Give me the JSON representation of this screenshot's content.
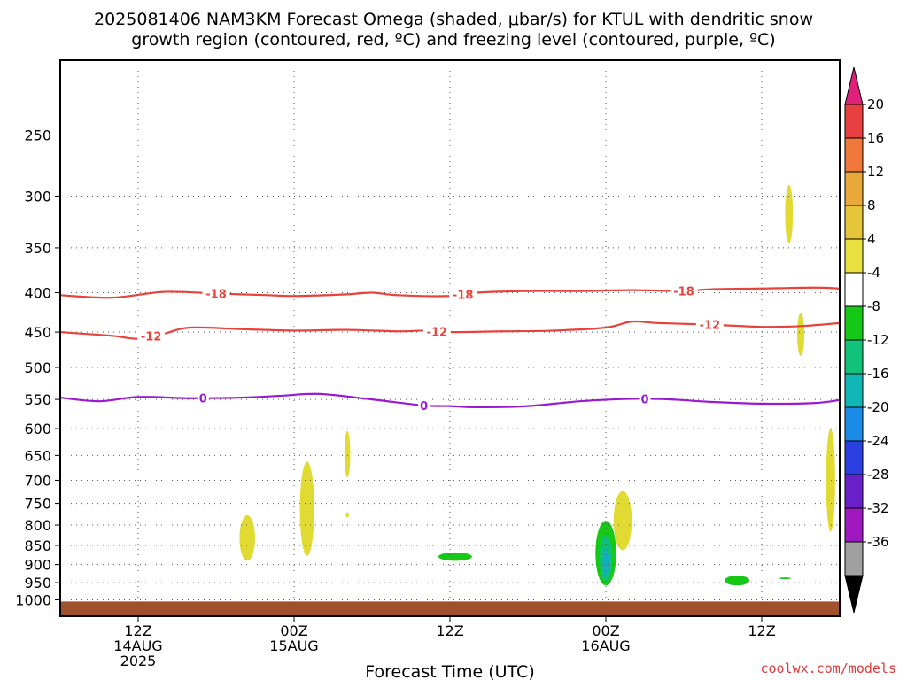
{
  "chart_data": {
    "type": "contour",
    "title_line1": "2025081406 NAM3KM Forecast Omega (shaded, μbar/s) for KTUL with dendritic snow",
    "title_line2": "growth region (contoured, red, ºC) and freezing level (contoured, purple, ºC)",
    "xlabel": "Forecast Time (UTC)",
    "credit": "coolwx.com/models",
    "x_range_hours": [
      0,
      60
    ],
    "y_axis": {
      "scale": "log-pressure",
      "range_hpa": [
        1050,
        200
      ],
      "ticks": [
        250,
        300,
        350,
        400,
        450,
        500,
        550,
        600,
        650,
        700,
        750,
        800,
        850,
        900,
        950,
        1000
      ]
    },
    "x_ticks": [
      {
        "hour": 6,
        "lines": [
          "12Z",
          "14AUG",
          "2025"
        ]
      },
      {
        "hour": 18,
        "lines": [
          "00Z",
          "15AUG"
        ]
      },
      {
        "hour": 30,
        "lines": [
          "12Z"
        ]
      },
      {
        "hour": 42,
        "lines": [
          "00Z",
          "16AUG"
        ]
      },
      {
        "hour": 54,
        "lines": [
          "12Z"
        ]
      }
    ],
    "grid": true,
    "surface_fill_hpa": 1005,
    "temperature_contours": [
      {
        "level": "-18",
        "color": "#e8423c",
        "label_hours": [
          12,
          31,
          48
        ],
        "points": [
          [
            0,
            403
          ],
          [
            4,
            406
          ],
          [
            8,
            399
          ],
          [
            12,
            401
          ],
          [
            16,
            403
          ],
          [
            18,
            404
          ],
          [
            22,
            402
          ],
          [
            24,
            400
          ],
          [
            26,
            403
          ],
          [
            30,
            404
          ],
          [
            32,
            400
          ],
          [
            36,
            398
          ],
          [
            40,
            398
          ],
          [
            44,
            397
          ],
          [
            48,
            398
          ],
          [
            50,
            396
          ],
          [
            54,
            395
          ],
          [
            58,
            394
          ],
          [
            60,
            395
          ]
        ]
      },
      {
        "level": "-12",
        "color": "#e8423c",
        "label_hours": [
          7,
          29,
          50
        ],
        "points": [
          [
            0,
            450
          ],
          [
            4,
            455
          ],
          [
            6,
            459
          ],
          [
            8,
            452
          ],
          [
            10,
            444
          ],
          [
            14,
            446
          ],
          [
            18,
            448
          ],
          [
            22,
            447
          ],
          [
            26,
            449
          ],
          [
            28,
            448
          ],
          [
            30,
            450
          ],
          [
            34,
            449
          ],
          [
            38,
            448
          ],
          [
            42,
            444
          ],
          [
            44,
            436
          ],
          [
            46,
            438
          ],
          [
            50,
            440
          ],
          [
            54,
            443
          ],
          [
            57,
            442
          ],
          [
            60,
            438
          ]
        ]
      },
      {
        "level": "0",
        "color": "#9a1ad0",
        "label_hours": [
          11,
          28,
          45
        ],
        "points": [
          [
            0,
            547
          ],
          [
            3,
            553
          ],
          [
            6,
            546
          ],
          [
            10,
            548
          ],
          [
            14,
            547
          ],
          [
            17,
            544
          ],
          [
            20,
            541
          ],
          [
            24,
            550
          ],
          [
            28,
            560
          ],
          [
            30,
            561
          ],
          [
            32,
            563
          ],
          [
            36,
            561
          ],
          [
            40,
            553
          ],
          [
            44,
            549
          ],
          [
            47,
            550
          ],
          [
            50,
            554
          ],
          [
            54,
            557
          ],
          [
            58,
            556
          ],
          [
            60,
            551
          ]
        ]
      }
    ],
    "omega_regions": [
      {
        "color": "#e1da32",
        "hour": 14.4,
        "p": [
          777,
          890
        ],
        "w": 1.2
      },
      {
        "color": "#e1da32",
        "hour": 19.0,
        "p": [
          662,
          877
        ],
        "w": 1.1
      },
      {
        "color": "#e1da32",
        "hour": 22.1,
        "p": [
          604,
          694
        ],
        "w": 0.45
      },
      {
        "color": "#e1da32",
        "hour": 22.1,
        "p": [
          770,
          782
        ],
        "w": 0.25
      },
      {
        "color": "#e1da32",
        "hour": 43.3,
        "p": [
          723,
          862
        ],
        "w": 1.4
      },
      {
        "color": "#e1da32",
        "hour": 56.1,
        "p": [
          290,
          345
        ],
        "w": 0.6
      },
      {
        "color": "#e1da32",
        "hour": 57.0,
        "p": [
          425,
          483
        ],
        "w": 0.55
      },
      {
        "color": "#e1da32",
        "hour": 59.3,
        "p": [
          600,
          816
        ],
        "w": 0.7
      },
      {
        "color": "#16c916",
        "hour": 42.0,
        "p": [
          790,
          958
        ],
        "w": 1.6
      },
      {
        "color": "#10c07a",
        "hour": 42.0,
        "p": [
          825,
          945
        ],
        "w": 1.0
      },
      {
        "color": "#10b0c0",
        "hour": 42.0,
        "p": [
          860,
          930
        ],
        "w": 0.45
      },
      {
        "color": "#16c916",
        "hour": 30.4,
        "p": [
          868,
          890
        ],
        "w": 2.6
      },
      {
        "color": "#16c916",
        "hour": 52.1,
        "p": [
          930,
          958
        ],
        "w": 1.9
      },
      {
        "color": "#16c916",
        "hour": 55.8,
        "p": [
          935,
          940
        ],
        "w": 0.9
      }
    ],
    "colorbar": {
      "labels": [
        "20",
        "16",
        "12",
        "8",
        "4",
        "-4",
        "-8",
        "-12",
        "-16",
        "-20",
        "-24",
        "-28",
        "-32",
        "-36"
      ],
      "bands": [
        "#e84040",
        "#f0783a",
        "#e8a83a",
        "#e5c53a",
        "#e8e040",
        "#ffffff",
        "#16c916",
        "#12c27a",
        "#0fb7b7",
        "#1a8ce8",
        "#2a40e0",
        "#6a20c8",
        "#a018c0",
        "#a0a0a0"
      ],
      "top_arrow": "#e0207a",
      "bottom_arrow": "#000000"
    }
  }
}
